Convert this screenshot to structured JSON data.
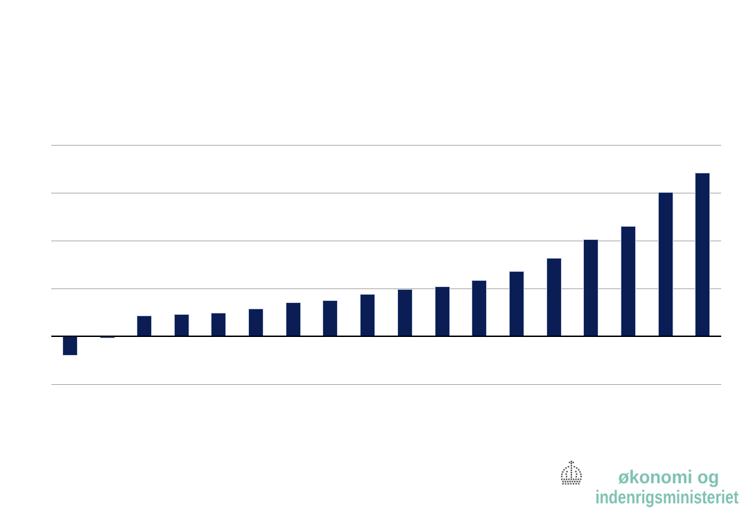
{
  "chart_data": {
    "type": "bar",
    "title": "",
    "xlabel": "",
    "ylabel": "",
    "categories": [
      "",
      "",
      "",
      "",
      "",
      "",
      "",
      "",
      "",
      "",
      "",
      "",
      "",
      "",
      "",
      "",
      "",
      ""
    ],
    "series": [
      {
        "name": "bars",
        "values": [
          -0.41,
          -0.05,
          0.43,
          0.47,
          0.49,
          0.58,
          0.71,
          0.75,
          0.89,
          0.98,
          1.05,
          1.18,
          1.36,
          1.64,
          2.03,
          2.3,
          3.02,
          3.42
        ]
      }
    ],
    "ylim": [
      -1,
      4
    ],
    "gridlines_y": [
      -1,
      1,
      2,
      3,
      4
    ],
    "baseline": 0,
    "grid": true,
    "legend_position": "none",
    "axis_tick_labels_visible": false,
    "value_units": "gridline-units: no axis labels are visible, 1 unit equals one gridline interval; values sorted ascending across 18 unlabeled bars"
  },
  "colors": {
    "bar_fill": "#0a1e55",
    "bar_border": "#ccd3ea",
    "gridline": "#a6a6a6",
    "zero_line": "#000000",
    "logo_text": "#7fc2b1",
    "crown": "#474747",
    "background": "#ffffff"
  },
  "logo": {
    "line1": "økonomi og",
    "line2": "indenrigsministeriet",
    "icon": "crown-icon"
  }
}
